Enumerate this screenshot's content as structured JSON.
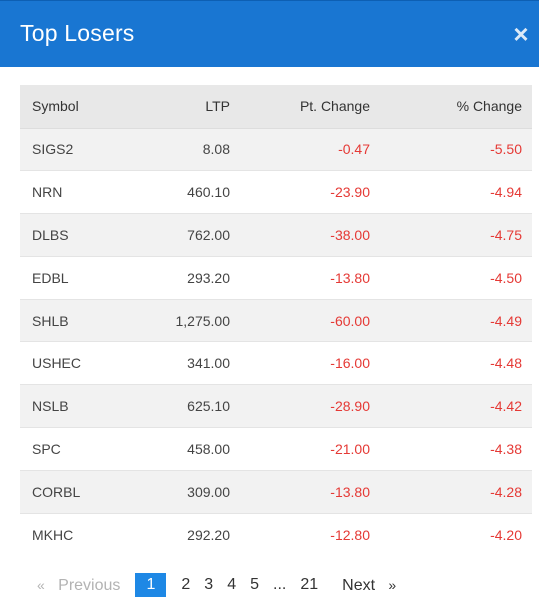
{
  "modal": {
    "title": "Top Losers",
    "close_icon": "×"
  },
  "table": {
    "headers": {
      "symbol": "Symbol",
      "ltp": "LTP",
      "pt_change": "Pt. Change",
      "pct_change": "% Change"
    },
    "rows": [
      {
        "symbol": "SIGS2",
        "ltp": "8.08",
        "pt_change": "-0.47",
        "pct_change": "-5.50"
      },
      {
        "symbol": "NRN",
        "ltp": "460.10",
        "pt_change": "-23.90",
        "pct_change": "-4.94"
      },
      {
        "symbol": "DLBS",
        "ltp": "762.00",
        "pt_change": "-38.00",
        "pct_change": "-4.75"
      },
      {
        "symbol": "EDBL",
        "ltp": "293.20",
        "pt_change": "-13.80",
        "pct_change": "-4.50"
      },
      {
        "symbol": "SHLB",
        "ltp": "1,275.00",
        "pt_change": "-60.00",
        "pct_change": "-4.49"
      },
      {
        "symbol": "USHEC",
        "ltp": "341.00",
        "pt_change": "-16.00",
        "pct_change": "-4.48"
      },
      {
        "symbol": "NSLB",
        "ltp": "625.10",
        "pt_change": "-28.90",
        "pct_change": "-4.42"
      },
      {
        "symbol": "SPC",
        "ltp": "458.00",
        "pt_change": "-21.00",
        "pct_change": "-4.38"
      },
      {
        "symbol": "CORBL",
        "ltp": "309.00",
        "pt_change": "-13.80",
        "pct_change": "-4.28"
      },
      {
        "symbol": "MKHC",
        "ltp": "292.20",
        "pt_change": "-12.80",
        "pct_change": "-4.20"
      }
    ]
  },
  "pagination": {
    "prev_arrow": "«",
    "prev_label": "Previous",
    "pages": [
      "1",
      "2",
      "3",
      "4",
      "5"
    ],
    "ellipsis": "...",
    "last_page": "21",
    "next_label": "Next",
    "next_arrow": "»",
    "current_page": "1"
  },
  "colors": {
    "header_bg": "#1976d2",
    "negative": "#e53935",
    "active_page": "#1e88e5"
  }
}
